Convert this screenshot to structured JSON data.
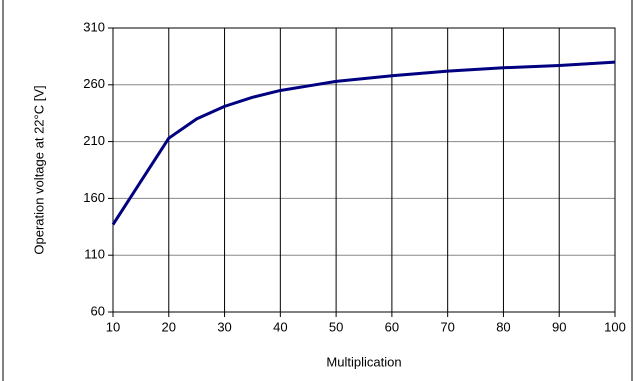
{
  "chart_data": {
    "type": "line",
    "x_label": "Multiplication",
    "y_label": "Operation voltage at 22°C [V]",
    "x": [
      10,
      15,
      20,
      25,
      30,
      35,
      40,
      45,
      50,
      60,
      70,
      80,
      90,
      100
    ],
    "series": [
      {
        "name": "Operation voltage",
        "color": "#000080",
        "values": [
          137,
          175,
          213,
          230,
          241,
          249,
          255,
          259,
          263,
          268,
          272,
          275,
          277,
          280
        ]
      }
    ],
    "xlim": [
      10,
      100
    ],
    "xticks": [
      10,
      20,
      30,
      40,
      50,
      60,
      70,
      80,
      90,
      100
    ],
    "ylim": [
      60,
      310
    ],
    "yticks": [
      60,
      110,
      160,
      210,
      260,
      310
    ],
    "grid": true
  }
}
